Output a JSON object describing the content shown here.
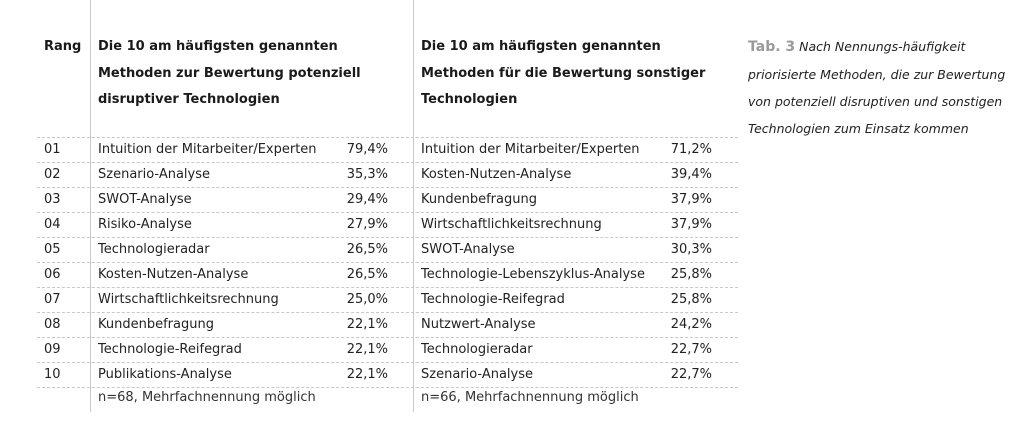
{
  "header": {
    "rank": "Rang",
    "col1": [
      "Die 10 am häufigsten genannten",
      "Methoden zur Bewertung potenziell",
      "disruptiver Technologien"
    ],
    "col2": [
      "Die 10 am häufigsten genannten",
      "Methoden für die Bewertung sonstiger",
      "Technologien"
    ]
  },
  "rows": [
    {
      "rank": "01",
      "m1": "Intuition der Mitarbeiter/Experten",
      "p1": "79,4%",
      "m2": "Intuition der Mitarbeiter/Experten",
      "p2": "71,2%"
    },
    {
      "rank": "02",
      "m1": "Szenario-Analyse",
      "p1": "35,3%",
      "m2": "Kosten-Nutzen-Analyse",
      "p2": "39,4%"
    },
    {
      "rank": "03",
      "m1": "SWOT-Analyse",
      "p1": "29,4%",
      "m2": "Kundenbefragung",
      "p2": "37,9%"
    },
    {
      "rank": "04",
      "m1": "Risiko-Analyse",
      "p1": "27,9%",
      "m2": "Wirtschaftlichkeitsrechnung",
      "p2": "37,9%"
    },
    {
      "rank": "05",
      "m1": "Technologieradar",
      "p1": "26,5%",
      "m2": "SWOT-Analyse",
      "p2": "30,3%"
    },
    {
      "rank": "06",
      "m1": "Kosten-Nutzen-Analyse",
      "p1": "26,5%",
      "m2": "Technologie-Lebenszyklus-Analyse",
      "p2": "25,8%"
    },
    {
      "rank": "07",
      "m1": "Wirtschaftlichkeitsrechnung",
      "p1": "25,0%",
      "m2": "Technologie-Reifegrad",
      "p2": "25,8%"
    },
    {
      "rank": "08",
      "m1": "Kundenbefragung",
      "p1": "22,1%",
      "m2": "Nutzwert-Analyse",
      "p2": "24,2%"
    },
    {
      "rank": "09",
      "m1": "Technologie-Reifegrad",
      "p1": "22,1%",
      "m2": "Technologieradar",
      "p2": "22,7%"
    },
    {
      "rank": "10",
      "m1": "Publikations-Analyse",
      "p1": "22,1%",
      "m2": "Szenario-Analyse",
      "p2": "22,7%"
    }
  ],
  "footer": {
    "col1": "n=68, Mehrfachnennung möglich",
    "col2": "n=66, Mehrfachnennung möglich"
  },
  "caption": {
    "label": "Tab. 3",
    "text": "Nach Nennungs-häufigkeit priorisierte Methoden, die zur Bewertung von potenziell disruptiven und sonstigen Technologien zum Einsatz kommen"
  }
}
